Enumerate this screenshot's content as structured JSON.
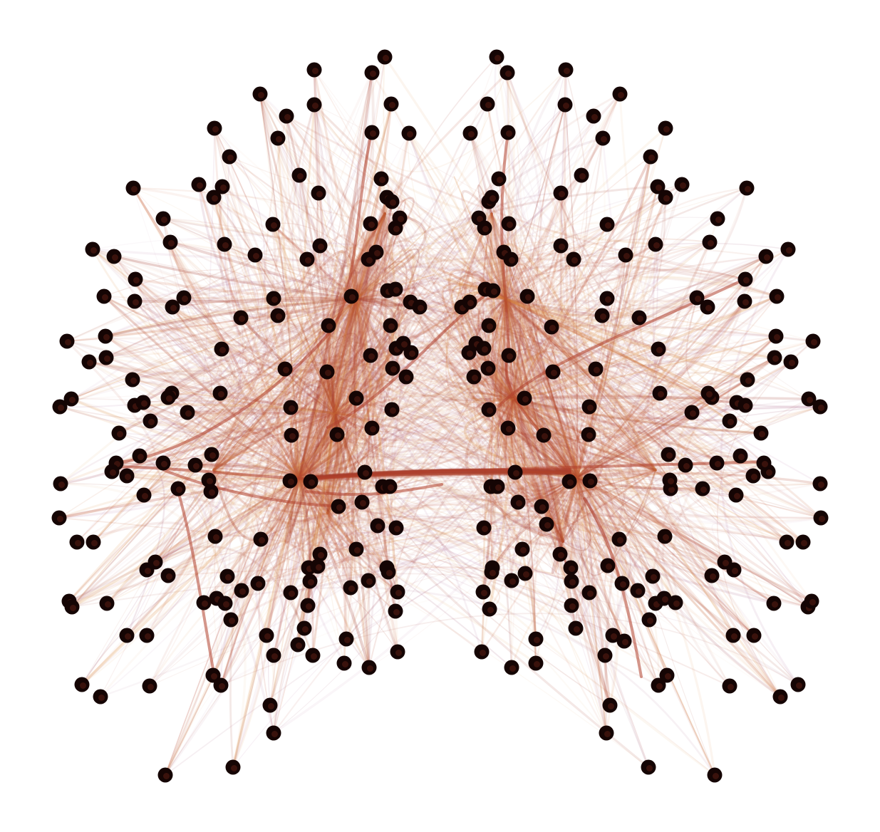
{
  "figure": {
    "type": "bundled-network-graph",
    "background": "#ffffff",
    "node_color": "#150504",
    "node_highlight": "#5a1e14",
    "edge_palette": [
      "#a13a2c",
      "#b5462e",
      "#c8623a",
      "#d98a3e",
      "#9a4a6e",
      "#b97fa6",
      "#e8b07a"
    ],
    "node_count_shown": 298,
    "edges_bundled": true
  }
}
